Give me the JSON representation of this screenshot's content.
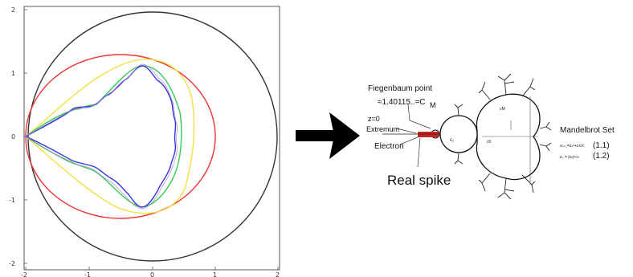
{
  "plot": {
    "x_ticks": [
      "-2",
      "-1",
      "0",
      "1",
      "2"
    ],
    "y_ticks": [
      "2",
      "1",
      "0",
      "-1",
      "-2"
    ],
    "curve_colors": {
      "outer_circle": "#333333",
      "red_curve": "#ee3333",
      "yellow_curve": "#f0e040",
      "green_curve": "#33cc55",
      "blue_curve": "#3333dd",
      "purple_curve": "#aa88cc"
    }
  },
  "arrow": {
    "icon": "right-arrow-icon",
    "color": "#000000"
  },
  "mandelbrot": {
    "feigenbaum_label": "Fiegenbaum point",
    "feigenbaum_value": "≈1.40115..=C",
    "feigenbaum_subscript": "M",
    "z0_label": "z=0",
    "extremum_label": "Extremum",
    "electron_label": "Electron",
    "real_spike_label": "Real spike",
    "set_title": "Mandelbrot Set",
    "eq1_text": "zₙ₊₁=zₙ²+c∈ℂ",
    "eq1_num": "(1.1)",
    "eq2_text": "z₀ =     |zₙ|<∞",
    "eq2_num": "(1.2)",
    "inner_label_1": "c₁",
    "inner_label_2": "cM",
    "inner_label_3": "c0",
    "spike_color": "#cc2222"
  }
}
